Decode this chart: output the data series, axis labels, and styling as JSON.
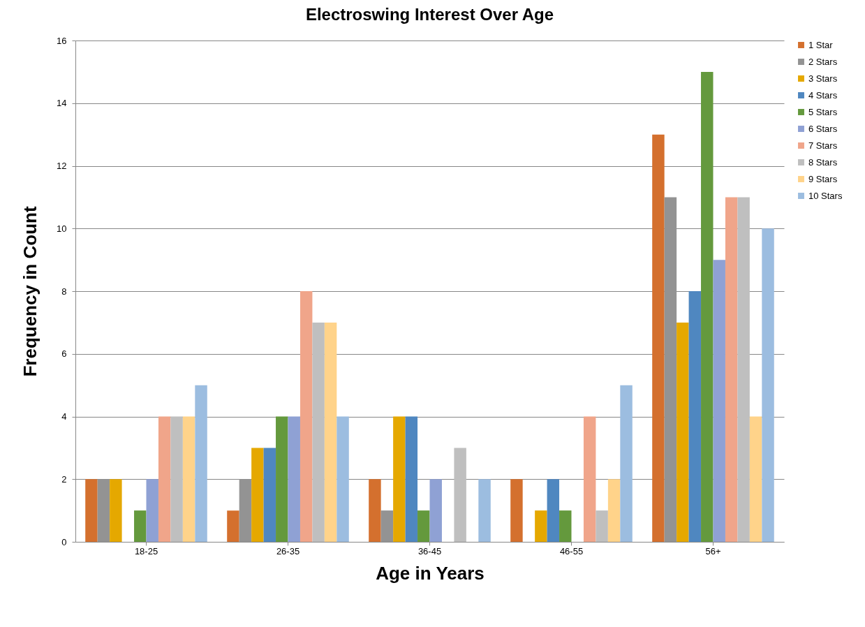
{
  "chart_data": {
    "type": "bar",
    "title": "Electroswing Interest Over Age",
    "xlabel": "Age in Years",
    "ylabel": "Frequency in Count",
    "categories": [
      "18-25",
      "26-35",
      "36-45",
      "46-55",
      "56+"
    ],
    "series": [
      {
        "name": "1 Star",
        "color": "#d4702e",
        "values": [
          2,
          1,
          2,
          2,
          13
        ]
      },
      {
        "name": "2 Stars",
        "color": "#939393",
        "values": [
          2,
          2,
          1,
          0,
          11
        ]
      },
      {
        "name": "3 Stars",
        "color": "#e5a800",
        "values": [
          2,
          3,
          4,
          1,
          7
        ]
      },
      {
        "name": "4 Stars",
        "color": "#4f87c0",
        "values": [
          0,
          3,
          4,
          2,
          8
        ]
      },
      {
        "name": "5 Stars",
        "color": "#64993d",
        "values": [
          1,
          4,
          1,
          1,
          15
        ]
      },
      {
        "name": "6 Stars",
        "color": "#8fa1d4",
        "values": [
          2,
          4,
          2,
          0,
          9
        ]
      },
      {
        "name": "7 Stars",
        "color": "#f0a58a",
        "values": [
          4,
          8,
          0,
          4,
          11
        ]
      },
      {
        "name": "8 Stars",
        "color": "#bfbfbf",
        "values": [
          4,
          7,
          3,
          1,
          11
        ]
      },
      {
        "name": "9 Stars",
        "color": "#ffd38a",
        "values": [
          4,
          7,
          0,
          2,
          4
        ]
      },
      {
        "name": "10 Stars",
        "color": "#9cbde0",
        "values": [
          5,
          4,
          2,
          5,
          10
        ]
      }
    ],
    "ylim": [
      0,
      16
    ],
    "yticks": [
      0,
      2,
      4,
      6,
      8,
      10,
      12,
      14,
      16
    ],
    "grid": "y",
    "legend": "right"
  }
}
